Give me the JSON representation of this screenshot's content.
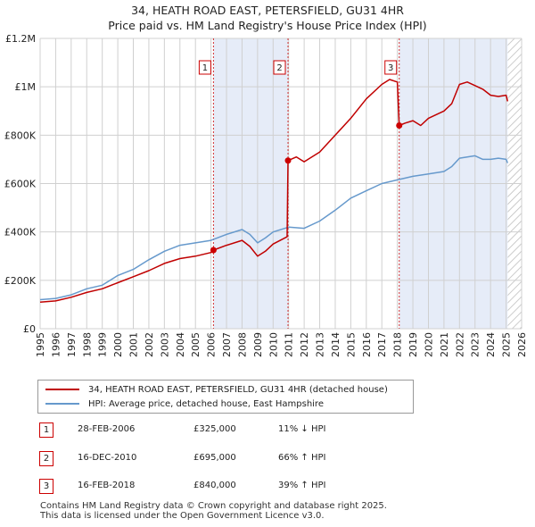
{
  "header": {
    "title": "34, HEATH ROAD EAST, PETERSFIELD, GU31 4HR",
    "subtitle": "Price paid vs. HM Land Registry's House Price Index (HPI)"
  },
  "colors": {
    "property": "#c00000",
    "hpi": "#6699cc",
    "shade": "#dde6f5",
    "grid": "#d0d0d0"
  },
  "chart_data": {
    "type": "line",
    "title": "34, HEATH ROAD EAST, PETERSFIELD, GU31 4HR",
    "subtitle": "Price paid vs. HM Land Registry's House Price Index (HPI)",
    "xlabel": "",
    "ylabel": "",
    "xlim": [
      1995,
      2026
    ],
    "ylim": [
      0,
      1200000
    ],
    "grid": true,
    "y_ticks": [
      {
        "value": 0,
        "label": "£0"
      },
      {
        "value": 200000,
        "label": "£200K"
      },
      {
        "value": 400000,
        "label": "£400K"
      },
      {
        "value": 600000,
        "label": "£600K"
      },
      {
        "value": 800000,
        "label": "£800K"
      },
      {
        "value": 1000000,
        "label": "£1M"
      },
      {
        "value": 1200000,
        "label": "£1.2M"
      }
    ],
    "x_ticks": [
      "1995",
      "1996",
      "1997",
      "1998",
      "1999",
      "2000",
      "2001",
      "2002",
      "2003",
      "2004",
      "2005",
      "2006",
      "2007",
      "2008",
      "2009",
      "2010",
      "2011",
      "2012",
      "2013",
      "2014",
      "2015",
      "2016",
      "2017",
      "2018",
      "2019",
      "2020",
      "2021",
      "2022",
      "2023",
      "2024",
      "2025",
      "2026"
    ],
    "shaded_periods": [
      [
        2006.16,
        2010.96
      ],
      [
        2018.12,
        2025.1
      ]
    ],
    "hatched_period": [
      2025.1,
      2026
    ],
    "series": [
      {
        "name": "34, HEATH ROAD EAST, PETERSFIELD, GU31 4HR (detached house)",
        "color": "#c00000",
        "x": [
          1995.0,
          1996.0,
          1997.0,
          1998.0,
          1999.0,
          2000.0,
          2001.0,
          2002.0,
          2003.0,
          2004.0,
          2005.0,
          2006.0,
          2006.16,
          2007.0,
          2008.0,
          2008.5,
          2009.0,
          2009.5,
          2010.0,
          2010.9,
          2010.96,
          2011.5,
          2012.0,
          2013.0,
          2014.0,
          2015.0,
          2016.0,
          2017.0,
          2017.5,
          2018.0,
          2018.12,
          2018.5,
          2019.0,
          2019.5,
          2020.0,
          2021.0,
          2021.5,
          2022.0,
          2022.5,
          2023.0,
          2023.5,
          2024.0,
          2024.5,
          2025.0,
          2025.1
        ],
        "y": [
          110000,
          115000,
          130000,
          150000,
          165000,
          190000,
          215000,
          240000,
          270000,
          290000,
          300000,
          315000,
          325000,
          345000,
          365000,
          340000,
          300000,
          320000,
          350000,
          380000,
          695000,
          710000,
          690000,
          730000,
          800000,
          870000,
          950000,
          1010000,
          1030000,
          1020000,
          840000,
          850000,
          860000,
          840000,
          870000,
          900000,
          930000,
          1010000,
          1020000,
          1005000,
          990000,
          965000,
          960000,
          965000,
          940000
        ]
      },
      {
        "name": "HPI: Average price, detached house, East Hampshire",
        "color": "#6699cc",
        "x": [
          1995.0,
          1996.0,
          1997.0,
          1998.0,
          1999.0,
          2000.0,
          2001.0,
          2002.0,
          2003.0,
          2004.0,
          2005.0,
          2006.0,
          2007.0,
          2008.0,
          2008.5,
          2009.0,
          2009.5,
          2010.0,
          2011.0,
          2012.0,
          2013.0,
          2014.0,
          2015.0,
          2016.0,
          2017.0,
          2018.0,
          2019.0,
          2020.0,
          2021.0,
          2021.5,
          2022.0,
          2022.5,
          2023.0,
          2023.5,
          2024.0,
          2024.5,
          2025.0,
          2025.1
        ],
        "y": [
          120000,
          125000,
          140000,
          165000,
          180000,
          220000,
          245000,
          285000,
          320000,
          345000,
          355000,
          365000,
          390000,
          410000,
          390000,
          355000,
          375000,
          400000,
          420000,
          415000,
          445000,
          490000,
          540000,
          570000,
          600000,
          615000,
          630000,
          640000,
          650000,
          670000,
          705000,
          710000,
          715000,
          700000,
          700000,
          705000,
          700000,
          685000
        ]
      }
    ],
    "sales": [
      {
        "marker": "1",
        "date": "28-FEB-2006",
        "x": 2006.16,
        "price": 325000,
        "price_label": "£325,000",
        "hpi_change": "11% ↓ HPI"
      },
      {
        "marker": "2",
        "date": "16-DEC-2010",
        "x": 2010.96,
        "price": 695000,
        "price_label": "£695,000",
        "hpi_change": "66% ↑ HPI"
      },
      {
        "marker": "3",
        "date": "16-FEB-2018",
        "x": 2018.12,
        "price": 840000,
        "price_label": "£840,000",
        "hpi_change": "39% ↑ HPI"
      }
    ]
  },
  "legend": {
    "property_label": "34, HEATH ROAD EAST, PETERSFIELD, GU31 4HR (detached house)",
    "hpi_label": "HPI: Average price, detached house, East Hampshire"
  },
  "footer": {
    "line1": "Contains HM Land Registry data © Crown copyright and database right 2025.",
    "line2": "This data is licensed under the Open Government Licence v3.0."
  }
}
